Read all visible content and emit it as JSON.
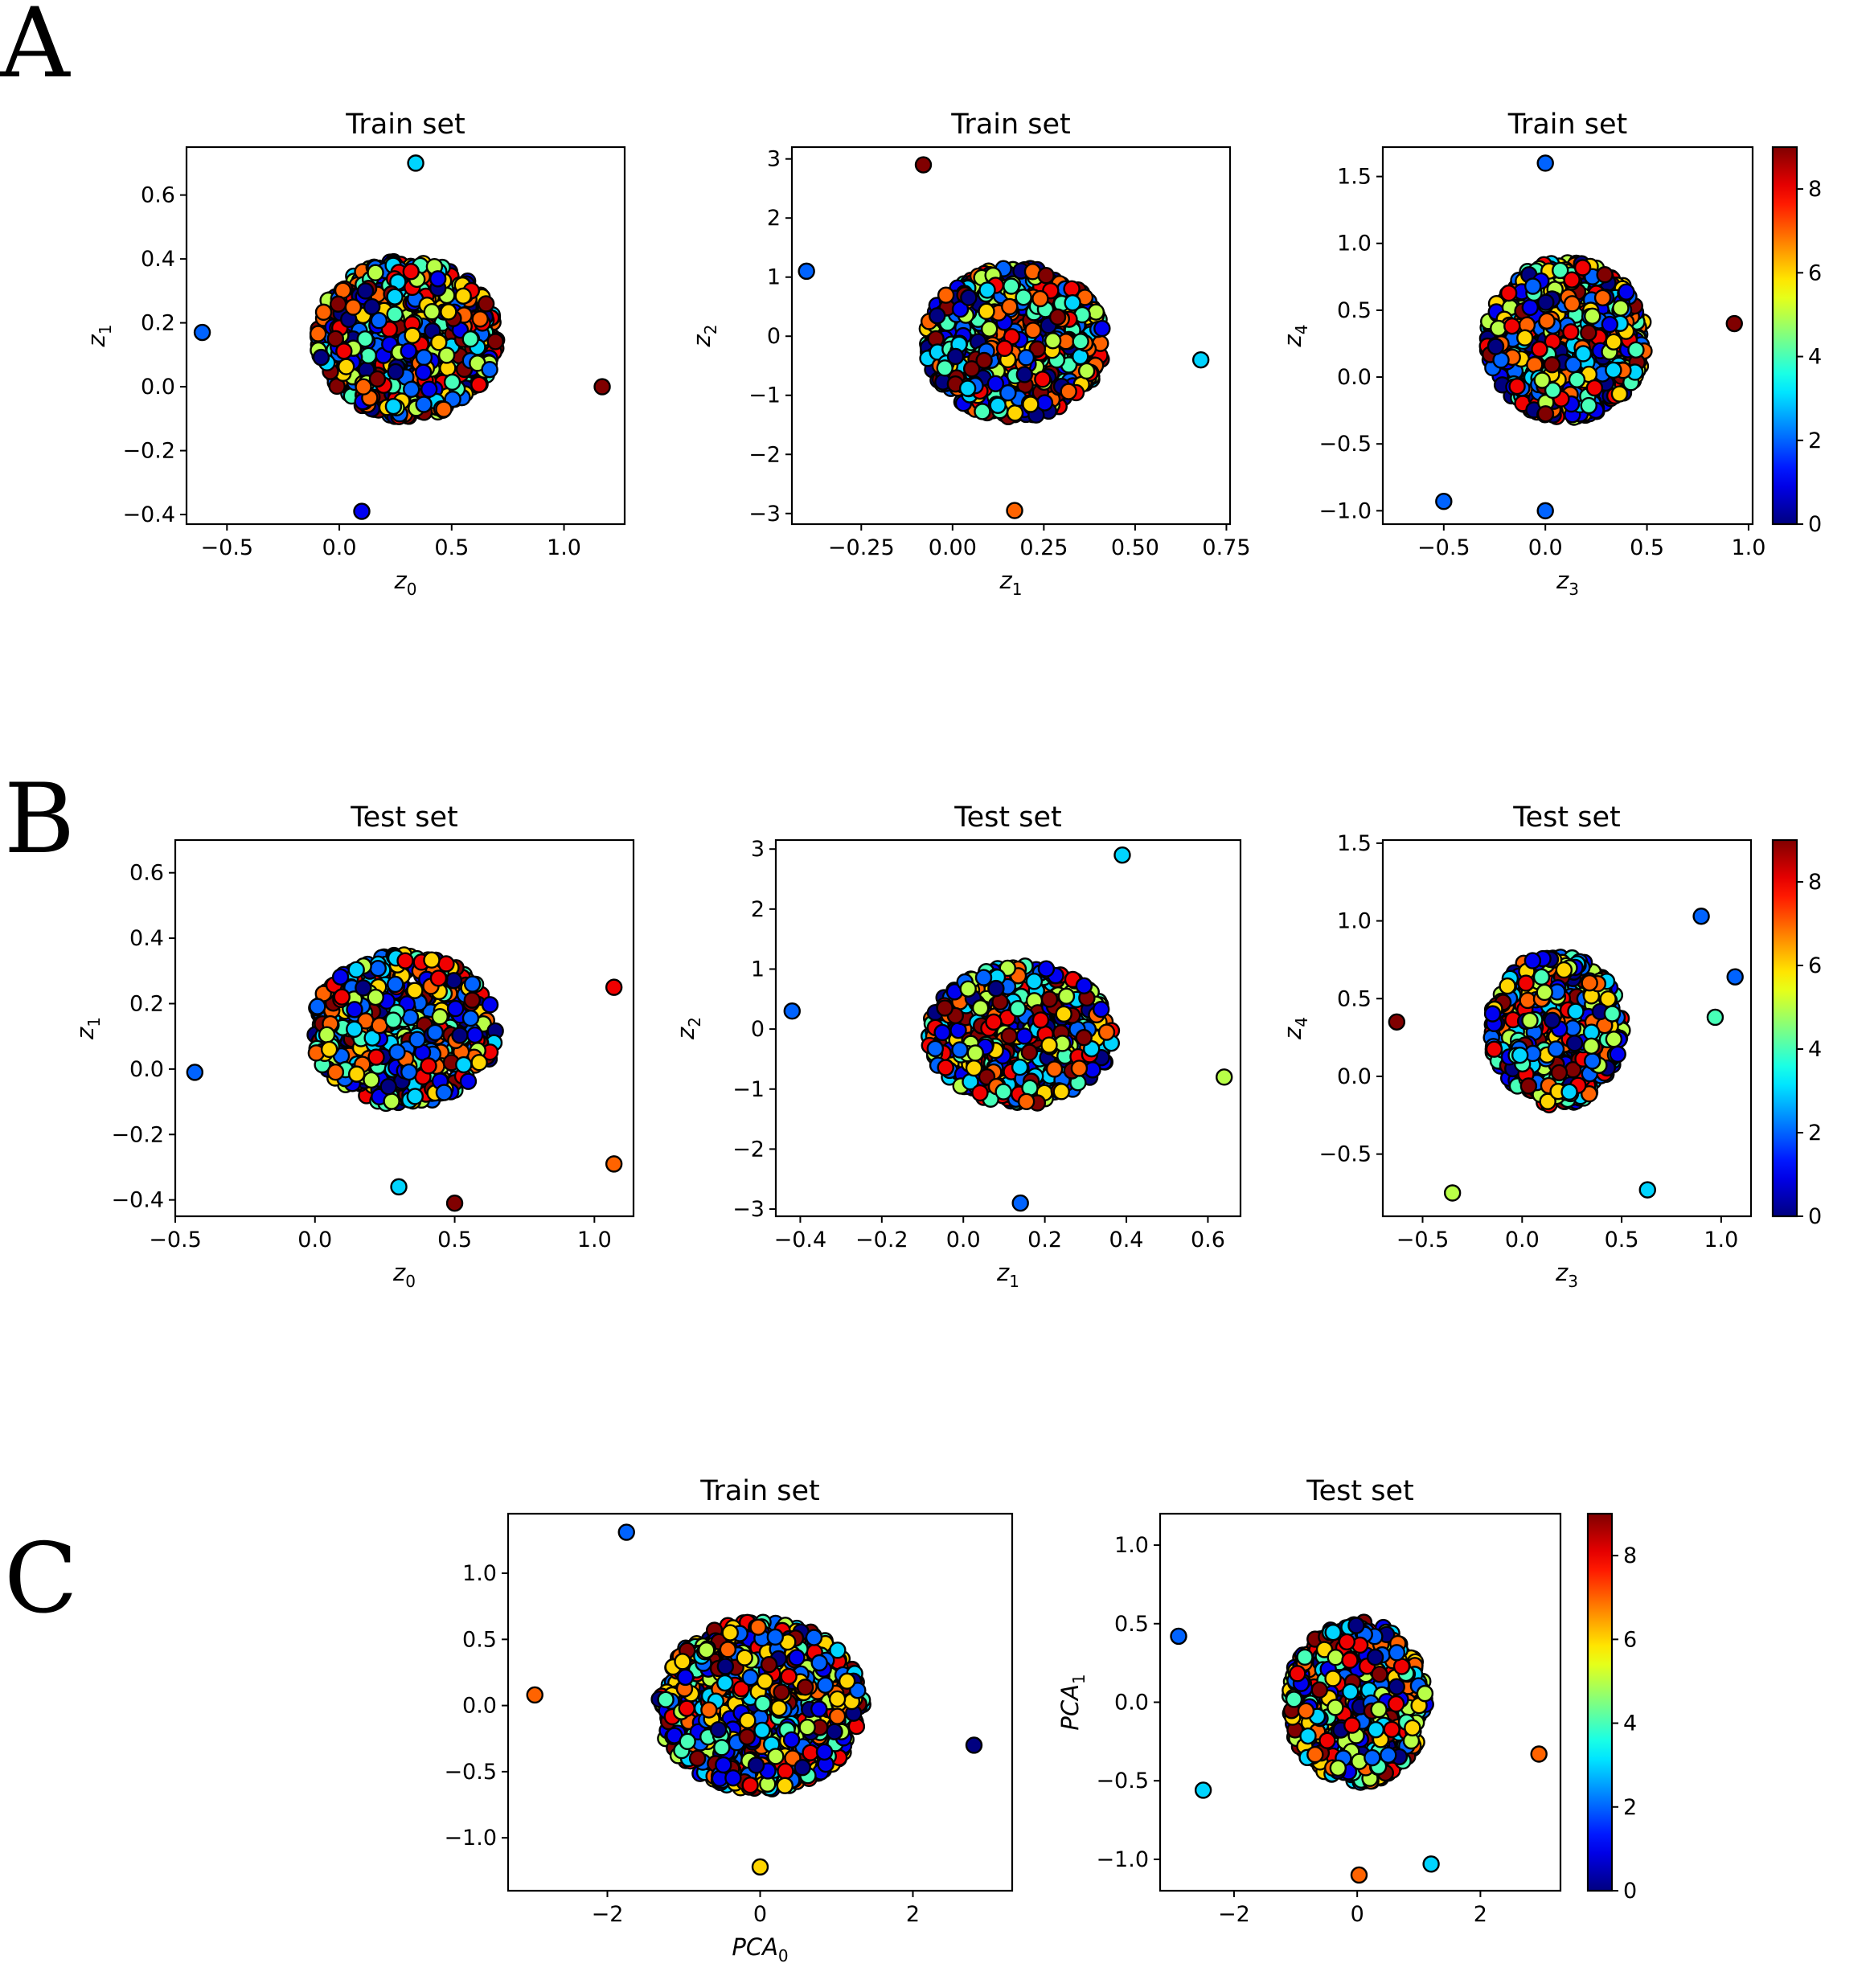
{
  "figure_labels": [
    "A",
    "B",
    "C"
  ],
  "chart_data": [
    {
      "id": "A1",
      "type": "scatter",
      "title": "Train set",
      "xlabel": {
        "base": "z",
        "sub": "0"
      },
      "ylabel": {
        "base": "z",
        "sub": "1"
      },
      "xlim": [
        -0.68,
        1.27
      ],
      "ylim": [
        -0.43,
        0.75
      ],
      "xticks": [
        -0.5,
        0.0,
        0.5,
        1.0
      ],
      "xtick_labels": [
        "−0.5",
        "0.0",
        "0.5",
        "1.0"
      ],
      "yticks": [
        -0.4,
        -0.2,
        0.0,
        0.2,
        0.4,
        0.6
      ],
      "ytick_labels": [
        "−0.4",
        "−0.2",
        "0.0",
        "0.2",
        "0.4",
        "0.6"
      ],
      "cluster": {
        "cx": 0.3,
        "cy": 0.15,
        "rx": 0.82,
        "ry": 0.5,
        "n": 900,
        "seed": 11
      },
      "outliers": [
        [
          -0.61,
          0.17
        ],
        [
          1.17,
          0.0
        ],
        [
          0.1,
          -0.39
        ],
        [
          0.34,
          0.7
        ]
      ]
    },
    {
      "id": "A2",
      "type": "scatter",
      "title": "Train set",
      "xlabel": {
        "base": "z",
        "sub": "1"
      },
      "ylabel": {
        "base": "z",
        "sub": "2"
      },
      "xlim": [
        -0.44,
        0.76
      ],
      "ylim": [
        -3.18,
        3.2
      ],
      "xticks": [
        -0.25,
        0.0,
        0.25,
        0.5,
        0.75
      ],
      "xtick_labels": [
        "−0.25",
        "0.00",
        "0.25",
        "0.50",
        "0.75"
      ],
      "yticks": [
        -3,
        -2,
        -1,
        0,
        1,
        2,
        3
      ],
      "ytick_labels": [
        "−3",
        "−2",
        "−1",
        "0",
        "1",
        "2",
        "3"
      ],
      "cluster": {
        "cx": 0.17,
        "cy": -0.1,
        "rx": 0.5,
        "ry": 2.6,
        "n": 900,
        "seed": 23
      },
      "outliers": [
        [
          -0.4,
          1.1
        ],
        [
          -0.08,
          2.9
        ],
        [
          0.68,
          -0.4
        ],
        [
          0.17,
          -2.95
        ]
      ]
    },
    {
      "id": "A3",
      "type": "scatter",
      "title": "Train set",
      "xlabel": {
        "base": "z",
        "sub": "3"
      },
      "ylabel": {
        "base": "z",
        "sub": "4"
      },
      "xlim": [
        -0.8,
        1.02
      ],
      "ylim": [
        -1.1,
        1.72
      ],
      "xticks": [
        -0.5,
        0.0,
        0.5,
        1.0
      ],
      "xtick_labels": [
        "−0.5",
        "0.0",
        "0.5",
        "1.0"
      ],
      "yticks": [
        -1.0,
        -0.5,
        0.0,
        0.5,
        1.0,
        1.5
      ],
      "ytick_labels": [
        "−1.0",
        "−0.5",
        "0.0",
        "0.5",
        "1.0",
        "1.5"
      ],
      "cluster": {
        "cx": 0.1,
        "cy": 0.28,
        "rx": 0.8,
        "ry": 1.2,
        "n": 900,
        "seed": 37
      },
      "outliers": [
        [
          0.0,
          1.6
        ],
        [
          -0.5,
          -0.93
        ],
        [
          0.93,
          0.4
        ],
        [
          0.0,
          -1.0
        ]
      ]
    },
    {
      "id": "B1",
      "type": "scatter",
      "title": "Test set",
      "xlabel": {
        "base": "z",
        "sub": "0"
      },
      "ylabel": {
        "base": "z",
        "sub": "1"
      },
      "xlim": [
        -0.5,
        1.14
      ],
      "ylim": [
        -0.45,
        0.7
      ],
      "xticks": [
        -0.5,
        0.0,
        0.5,
        1.0
      ],
      "xtick_labels": [
        "−0.5",
        "0.0",
        "0.5",
        "1.0"
      ],
      "yticks": [
        -0.4,
        -0.2,
        0.0,
        0.2,
        0.4,
        0.6
      ],
      "ytick_labels": [
        "−0.4",
        "−0.2",
        "0.0",
        "0.2",
        "0.4",
        "0.6"
      ],
      "cluster": {
        "cx": 0.32,
        "cy": 0.12,
        "rx": 0.68,
        "ry": 0.47,
        "n": 650,
        "seed": 53
      },
      "outliers": [
        [
          -0.43,
          -0.01
        ],
        [
          1.07,
          -0.29
        ],
        [
          0.5,
          -0.41
        ],
        [
          1.07,
          0.25
        ],
        [
          0.3,
          -0.36
        ]
      ]
    },
    {
      "id": "B2",
      "type": "scatter",
      "title": "Test set",
      "xlabel": {
        "base": "z",
        "sub": "1"
      },
      "ylabel": {
        "base": "z",
        "sub": "2"
      },
      "xlim": [
        -0.46,
        0.68
      ],
      "ylim": [
        -3.12,
        3.15
      ],
      "xticks": [
        -0.4,
        -0.2,
        0.0,
        0.2,
        0.4,
        0.6
      ],
      "xtick_labels": [
        "−0.4",
        "−0.2",
        "0.0",
        "0.2",
        "0.4",
        "0.6"
      ],
      "yticks": [
        -3,
        -2,
        -1,
        0,
        1,
        2,
        3
      ],
      "ytick_labels": [
        "−3",
        "−2",
        "−1",
        "0",
        "1",
        "2",
        "3"
      ],
      "cluster": {
        "cx": 0.14,
        "cy": -0.1,
        "rx": 0.46,
        "ry": 2.35,
        "n": 650,
        "seed": 71
      },
      "outliers": [
        [
          -0.42,
          0.3
        ],
        [
          0.39,
          2.9
        ],
        [
          0.14,
          -2.9
        ],
        [
          0.64,
          -0.8
        ]
      ]
    },
    {
      "id": "B3",
      "type": "scatter",
      "title": "Test set",
      "xlabel": {
        "base": "z",
        "sub": "3"
      },
      "ylabel": {
        "base": "z",
        "sub": "4"
      },
      "xlim": [
        -0.7,
        1.15
      ],
      "ylim": [
        -0.9,
        1.52
      ],
      "xticks": [
        -0.5,
        0.0,
        0.5,
        1.0
      ],
      "xtick_labels": [
        "−0.5",
        "0.0",
        "0.5",
        "1.0"
      ],
      "yticks": [
        -0.5,
        0.0,
        0.5,
        1.0,
        1.5
      ],
      "ytick_labels": [
        "−0.5",
        "0.0",
        "0.5",
        "1.0",
        "1.5"
      ],
      "cluster": {
        "cx": 0.17,
        "cy": 0.3,
        "rx": 0.68,
        "ry": 1.0,
        "n": 650,
        "seed": 89
      },
      "outliers": [
        [
          1.07,
          0.64
        ],
        [
          -0.63,
          0.35
        ],
        [
          -0.35,
          -0.75
        ],
        [
          0.9,
          1.03
        ],
        [
          0.63,
          -0.73
        ],
        [
          0.97,
          0.38
        ]
      ]
    },
    {
      "id": "C1",
      "type": "scatter",
      "title": "Train set",
      "xlabel": {
        "base": "PCA",
        "sub": "0"
      },
      "ylabel": {
        "base": "",
        "sub": ""
      },
      "xlim": [
        -3.3,
        3.3
      ],
      "ylim": [
        -1.4,
        1.45
      ],
      "xticks": [
        -2,
        0,
        2
      ],
      "xtick_labels": [
        "−2",
        "0",
        "2"
      ],
      "yticks": [
        -1.0,
        -0.5,
        0.0,
        0.5,
        1.0
      ],
      "ytick_labels": [
        "−1.0",
        "−0.5",
        "0.0",
        "0.5",
        "1.0"
      ],
      "cluster": {
        "cx": 0.0,
        "cy": 0.0,
        "rx": 2.75,
        "ry": 1.3,
        "n": 1000,
        "seed": 101
      },
      "outliers": [
        [
          -1.75,
          1.31
        ],
        [
          2.8,
          -0.3
        ],
        [
          -2.95,
          0.08
        ],
        [
          0.0,
          -1.22
        ]
      ]
    },
    {
      "id": "C2",
      "type": "scatter",
      "title": "Test set",
      "xlabel": {
        "base": "",
        "sub": ""
      },
      "ylabel": {
        "base": "PCA",
        "sub": "1"
      },
      "xlim": [
        -3.2,
        3.3
      ],
      "ylim": [
        -1.2,
        1.2
      ],
      "xticks": [
        -2,
        0,
        2
      ],
      "xtick_labels": [
        "−2",
        "0",
        "2"
      ],
      "yticks": [
        -1.0,
        -0.5,
        0.0,
        0.5,
        1.0
      ],
      "ytick_labels": [
        "−1.0",
        "−0.5",
        "0.0",
        "0.5",
        "1.0"
      ],
      "cluster": {
        "cx": 0.0,
        "cy": 0.0,
        "rx": 2.3,
        "ry": 1.05,
        "n": 700,
        "seed": 131
      },
      "outliers": [
        [
          -2.9,
          0.42
        ],
        [
          2.95,
          -0.33
        ],
        [
          -2.5,
          -0.56
        ],
        [
          0.03,
          -1.1
        ],
        [
          1.2,
          -1.03
        ]
      ]
    }
  ],
  "colorbar": {
    "cmap": "jet",
    "min": 0,
    "max": 9,
    "ticks": [
      0,
      2,
      4,
      6,
      8
    ],
    "tick_labels": [
      "0",
      "2",
      "4",
      "6",
      "8"
    ]
  }
}
